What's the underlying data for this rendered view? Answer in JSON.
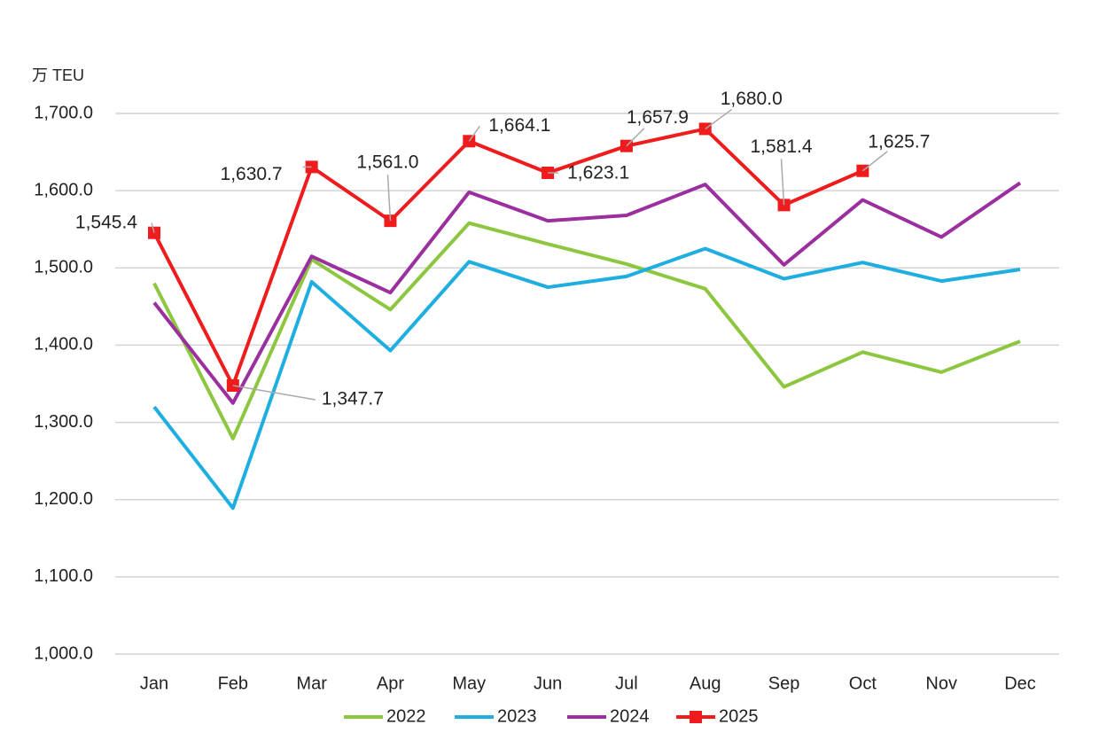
{
  "chart_data": {
    "type": "line",
    "y_label": "万 TEU",
    "categories": [
      "Jan",
      "Feb",
      "Mar",
      "Apr",
      "May",
      "Jun",
      "Jul",
      "Aug",
      "Sep",
      "Oct",
      "Nov",
      "Dec"
    ],
    "series": [
      {
        "name": "2022",
        "color": "#8dc63f",
        "values": [
          1480,
          1279,
          1511,
          1446,
          1558,
          1531,
          1505,
          1473,
          1346,
          1391,
          1365,
          1405
        ]
      },
      {
        "name": "2023",
        "color": "#1eaee0",
        "values": [
          1320,
          1189,
          1482,
          1393,
          1508,
          1475,
          1489,
          1525,
          1486,
          1507,
          1483,
          1498
        ]
      },
      {
        "name": "2024",
        "color": "#9b2fa0",
        "values": [
          1455,
          1325,
          1515,
          1468,
          1598,
          1561,
          1568,
          1608,
          1504,
          1588,
          1540,
          1610
        ]
      },
      {
        "name": "2025",
        "color": "#ee1c1c",
        "marker": "square",
        "values": [
          1545.4,
          1347.7,
          1630.7,
          1561.0,
          1664.1,
          1623.1,
          1657.9,
          1680.0,
          1581.4,
          1625.7,
          null,
          null
        ],
        "value_labels": [
          "1,545.4",
          "1,347.7",
          "1,630.7",
          "1,561.0",
          "1,664.1",
          "1,623.1",
          "1,657.9",
          "1,680.0",
          "1,581.4",
          "1,625.7",
          null,
          null
        ]
      }
    ],
    "ylim": [
      1000,
      1700
    ],
    "yticks": [
      {
        "value": 1000,
        "label": "1,000.0"
      },
      {
        "value": 1100,
        "label": "1,100.0"
      },
      {
        "value": 1200,
        "label": "1,200.0"
      },
      {
        "value": 1300,
        "label": "1,300.0"
      },
      {
        "value": 1400,
        "label": "1,400.0"
      },
      {
        "value": 1500,
        "label": "1,500.0"
      },
      {
        "value": 1600,
        "label": "1,600.0"
      },
      {
        "value": 1700,
        "label": "1,700.0"
      }
    ],
    "grid": true,
    "legend": "bottom"
  }
}
